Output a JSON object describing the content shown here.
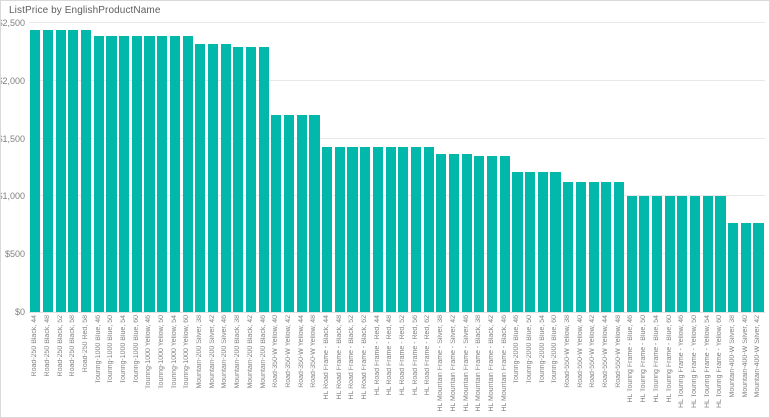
{
  "visual": {
    "title": "ListPrice by EnglishProductName"
  },
  "colors": {
    "bar": "#01B8AA",
    "title_text": "#605E5C",
    "axis_text": "#808080",
    "gridline": "#E8E8E8",
    "border": "#D9D9D9",
    "background": "#FFFFFF"
  },
  "chart_data": {
    "type": "bar",
    "title": "ListPrice by EnglishProductName",
    "xlabel": "EnglishProductName",
    "ylabel": "ListPrice",
    "ylim": [
      0,
      2500
    ],
    "grid": true,
    "legend": "none",
    "bar_color": "#01B8AA",
    "y_ticks": [
      {
        "label": "$2,500",
        "value": 2500
      },
      {
        "label": "$2,000",
        "value": 2000
      },
      {
        "label": "$1,500",
        "value": 1500
      },
      {
        "label": "$1,000",
        "value": 1000
      },
      {
        "label": "$500",
        "value": 500
      },
      {
        "label": "$0",
        "value": 0
      }
    ],
    "categories": [
      "Road-250 Black, 44",
      "Road-250 Black, 48",
      "Road-250 Black, 52",
      "Road-250 Black, 58",
      "Road-250 Red, 58",
      "Touring-1000 Blue, 46",
      "Touring-1000 Blue, 50",
      "Touring-1000 Blue, 54",
      "Touring-1000 Blue, 60",
      "Touring-1000 Yellow, 46",
      "Touring-1000 Yellow, 50",
      "Touring-1000 Yellow, 54",
      "Touring-1000 Yellow, 60",
      "Mountain-200 Silver, 38",
      "Mountain-200 Silver, 42",
      "Mountain-200 Silver, 46",
      "Mountain-200 Black, 38",
      "Mountain-200 Black, 42",
      "Mountain-200 Black, 46",
      "Road-350-W Yellow, 40",
      "Road-350-W Yellow, 42",
      "Road-350-W Yellow, 44",
      "Road-350-W Yellow, 48",
      "HL Road Frame - Black, 44",
      "HL Road Frame - Black, 48",
      "HL Road Frame - Black, 52",
      "HL Road Frame - Black, 62",
      "HL Road Frame - Red, 44",
      "HL Road Frame - Red, 48",
      "HL Road Frame - Red, 52",
      "HL Road Frame - Red, 56",
      "HL Road Frame - Red, 62",
      "HL Mountain Frame - Silver, 38",
      "HL Mountain Frame - Silver, 42",
      "HL Mountain Frame - Silver, 46",
      "HL Mountain Frame - Black, 38",
      "HL Mountain Frame - Black, 42",
      "HL Mountain Frame - Black, 46",
      "Touring-2000 Blue, 46",
      "Touring-2000 Blue, 50",
      "Touring-2000 Blue, 54",
      "Touring-2000 Blue, 60",
      "Road-550-W Yellow, 38",
      "Road-550-W Yellow, 40",
      "Road-550-W Yellow, 42",
      "Road-550-W Yellow, 44",
      "Road-550-W Yellow, 48",
      "HL Touring Frame - Blue, 46",
      "HL Touring Frame - Blue, 50",
      "HL Touring Frame - Blue, 54",
      "HL Touring Frame - Blue, 60",
      "HL Touring Frame - Yellow, 46",
      "HL Touring Frame - Yellow, 50",
      "HL Touring Frame - Yellow, 54",
      "HL Touring Frame - Yellow, 60",
      "Mountain-400-W Silver, 38",
      "Mountain-400-W Silver, 40",
      "Mountain-400-W Silver, 42"
    ],
    "values": [
      2443.35,
      2443.35,
      2443.35,
      2443.35,
      2443.35,
      2384.07,
      2384.07,
      2384.07,
      2384.07,
      2384.07,
      2384.07,
      2384.07,
      2384.07,
      2319.99,
      2319.99,
      2319.99,
      2294.99,
      2294.99,
      2294.99,
      1700.99,
      1700.99,
      1700.99,
      1700.99,
      1431.5,
      1431.5,
      1431.5,
      1431.5,
      1431.5,
      1431.5,
      1431.5,
      1431.5,
      1431.5,
      1364.5,
      1364.5,
      1364.5,
      1349.6,
      1349.6,
      1349.6,
      1214.85,
      1214.85,
      1214.85,
      1214.85,
      1120.49,
      1120.49,
      1120.49,
      1120.49,
      1120.49,
      1003.91,
      1003.91,
      1003.91,
      1003.91,
      1003.91,
      1003.91,
      1003.91,
      1003.91,
      769.49,
      769.49,
      769.49
    ]
  }
}
